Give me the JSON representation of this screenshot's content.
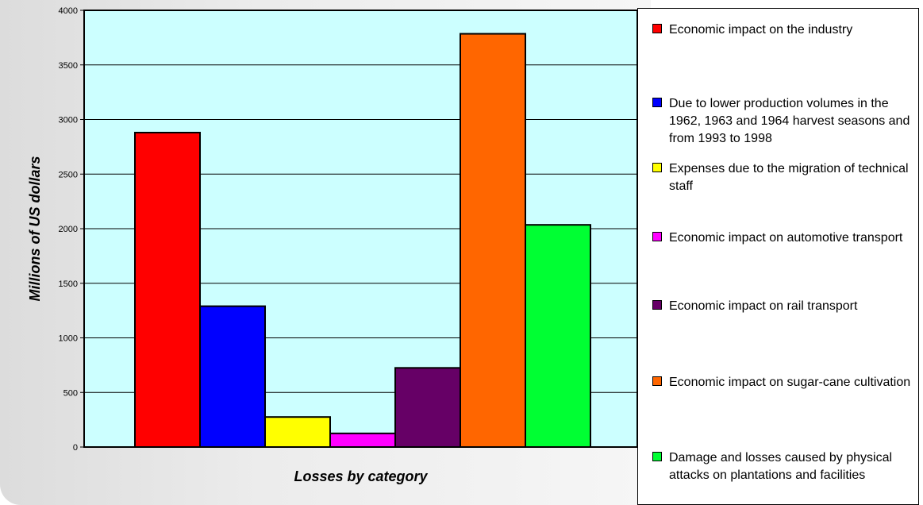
{
  "chart_data": {
    "type": "bar",
    "title": "",
    "xlabel": "Losses by category",
    "ylabel": "Millions of US dollars",
    "ylim": [
      0,
      4000
    ],
    "yticks": [
      0,
      500,
      1000,
      1500,
      2000,
      2500,
      3000,
      3500,
      4000
    ],
    "grid": true,
    "legend_position": "right",
    "series": [
      {
        "name": "Economic impact on the industry",
        "value": 2880,
        "color": "#ff0000"
      },
      {
        "name": "Due to lower production volumes in the 1962, 1963 and 1964 harvest seasons and from 1993 to 1998",
        "value": 1290,
        "color": "#0000ff"
      },
      {
        "name": "Expenses due to the migration of technical staff",
        "value": 275,
        "color": "#ffff00"
      },
      {
        "name": "Economic impact on automotive transport",
        "value": 125,
        "color": "#ff00ff"
      },
      {
        "name": "Economic impact on rail transport",
        "value": 725,
        "color": "#660066"
      },
      {
        "name": "Economic impact on sugar-cane cultivation",
        "value": 3785,
        "color": "#ff6600"
      },
      {
        "name": "Damage and losses caused by physical attacks on plantations and facilities",
        "value": 2035,
        "color": "#00ff33"
      }
    ],
    "plot_background": "#ccffff"
  }
}
